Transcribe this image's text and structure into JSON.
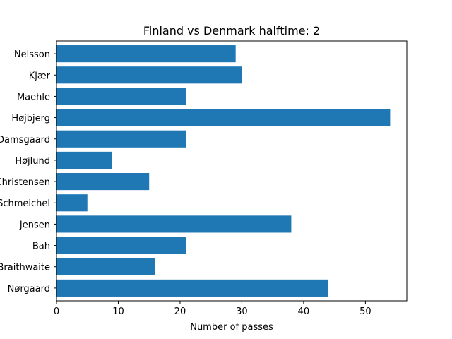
{
  "chart_data": {
    "type": "bar",
    "orientation": "horizontal",
    "title": "Finland vs Denmark halftime: 2",
    "xlabel": "Number of passes",
    "ylabel": "",
    "xlim": [
      0,
      56.7
    ],
    "xticks": [
      0,
      10,
      20,
      30,
      40,
      50
    ],
    "grid": false,
    "bar_color": "#1f77b4",
    "categories": [
      "Nelsson",
      "Kjær",
      "Maehle",
      "Højbjerg",
      "Damsgaard",
      "Højlund",
      "Christensen",
      "Schmeichel",
      "Jensen",
      "Bah",
      "Braithwaite",
      "Nørgaard"
    ],
    "values": [
      29,
      30,
      21,
      54,
      21,
      9,
      15,
      5,
      38,
      21,
      16,
      44
    ]
  }
}
